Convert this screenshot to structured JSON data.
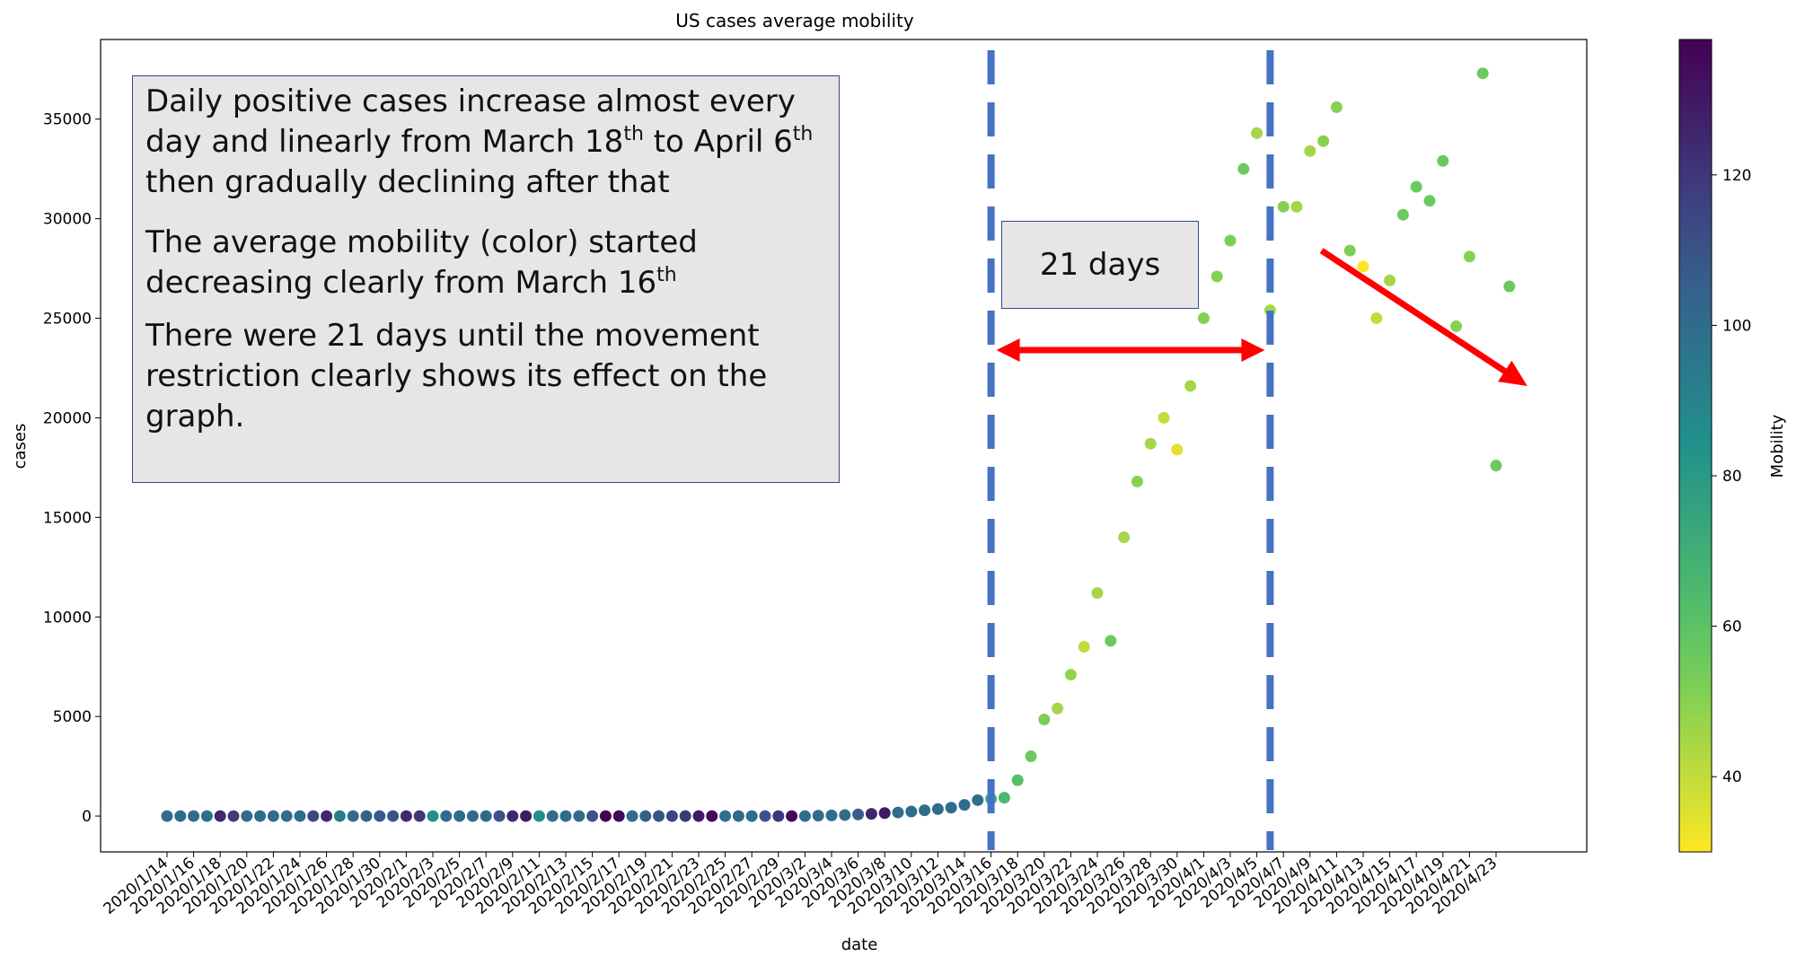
{
  "chart_data": {
    "type": "scatter",
    "title": "US cases average mobility",
    "xlabel": "date",
    "ylabel": "cases",
    "ylim": [
      -1800,
      39000
    ],
    "yticks": [
      0,
      5000,
      10000,
      15000,
      20000,
      25000,
      30000,
      35000
    ],
    "colorbar": {
      "label": "Mobility",
      "range": [
        30,
        138
      ],
      "ticks": [
        40,
        60,
        80,
        100,
        120
      ],
      "colormap": "viridis (reversed: yellow = low, purple = high)"
    },
    "x_tick_labels": [
      "2020/1/14",
      "2020/1/16",
      "2020/1/18",
      "2020/1/20",
      "2020/1/22",
      "2020/1/24",
      "2020/1/26",
      "2020/1/28",
      "2020/1/30",
      "2020/2/1",
      "2020/2/3",
      "2020/2/5",
      "2020/2/7",
      "2020/2/9",
      "2020/2/11",
      "2020/2/13",
      "2020/2/15",
      "2020/2/17",
      "2020/2/19",
      "2020/2/21",
      "2020/2/23",
      "2020/2/25",
      "2020/2/27",
      "2020/2/29",
      "2020/3/2",
      "2020/3/4",
      "2020/3/6",
      "2020/3/8",
      "2020/3/10",
      "2020/3/12",
      "2020/3/14",
      "2020/3/16",
      "2020/3/18",
      "2020/3/20",
      "2020/3/22",
      "2020/3/24",
      "2020/3/26",
      "2020/3/28",
      "2020/3/30",
      "2020/4/1",
      "2020/4/3",
      "2020/4/5",
      "2020/4/7",
      "2020/4/9",
      "2020/4/11",
      "2020/4/13",
      "2020/4/15",
      "2020/4/17",
      "2020/4/19",
      "2020/4/21",
      "2020/4/23"
    ],
    "series": [
      {
        "x": [
          "2020/1/14",
          "2020/1/15",
          "2020/1/16",
          "2020/1/17",
          "2020/1/18",
          "2020/1/19",
          "2020/1/20",
          "2020/1/21",
          "2020/1/22",
          "2020/1/23",
          "2020/1/24",
          "2020/1/25",
          "2020/1/26",
          "2020/1/27",
          "2020/1/28",
          "2020/1/29",
          "2020/1/30",
          "2020/1/31",
          "2020/2/1",
          "2020/2/2",
          "2020/2/3",
          "2020/2/4",
          "2020/2/5",
          "2020/2/6",
          "2020/2/7",
          "2020/2/8",
          "2020/2/9",
          "2020/2/10",
          "2020/2/11",
          "2020/2/12",
          "2020/2/13",
          "2020/2/14",
          "2020/2/15",
          "2020/2/16",
          "2020/2/17",
          "2020/2/18",
          "2020/2/19",
          "2020/2/20",
          "2020/2/21",
          "2020/2/22",
          "2020/2/23",
          "2020/2/24",
          "2020/2/25",
          "2020/2/26",
          "2020/2/27",
          "2020/2/28",
          "2020/2/29",
          "2020/3/1",
          "2020/3/2",
          "2020/3/3",
          "2020/3/4",
          "2020/3/5",
          "2020/3/6",
          "2020/3/7",
          "2020/3/8",
          "2020/3/9",
          "2020/3/10",
          "2020/3/11",
          "2020/3/12",
          "2020/3/13",
          "2020/3/14",
          "2020/3/15",
          "2020/3/16",
          "2020/3/17",
          "2020/3/18",
          "2020/3/19",
          "2020/3/20",
          "2020/3/21",
          "2020/3/22",
          "2020/3/23",
          "2020/3/24",
          "2020/3/25",
          "2020/3/26",
          "2020/3/27",
          "2020/3/28",
          "2020/3/29",
          "2020/3/30",
          "2020/3/31",
          "2020/4/1",
          "2020/4/2",
          "2020/4/3",
          "2020/4/4",
          "2020/4/5",
          "2020/4/6",
          "2020/4/7",
          "2020/4/8",
          "2020/4/9",
          "2020/4/10",
          "2020/4/11",
          "2020/4/12",
          "2020/4/13",
          "2020/4/14",
          "2020/4/15",
          "2020/4/16",
          "2020/4/17",
          "2020/4/18",
          "2020/4/19",
          "2020/4/20",
          "2020/4/21",
          "2020/4/22",
          "2020/4/23",
          "2020/4/24"
        ],
        "cases": [
          0,
          0,
          0,
          0,
          0,
          0,
          0,
          0,
          0,
          0,
          0,
          0,
          0,
          0,
          0,
          0,
          0,
          0,
          0,
          0,
          0,
          0,
          0,
          0,
          0,
          0,
          0,
          0,
          0,
          0,
          0,
          0,
          0,
          0,
          0,
          0,
          0,
          0,
          0,
          0,
          0,
          0,
          0,
          0,
          0,
          0,
          0,
          0,
          0,
          20,
          30,
          50,
          80,
          110,
          150,
          180,
          230,
          290,
          350,
          420,
          560,
          800,
          860,
          920,
          1800,
          3000,
          4850,
          5400,
          7100,
          8500,
          11200,
          8800,
          14000,
          16800,
          18700,
          20000,
          18400,
          21600,
          25000,
          27100,
          28900,
          32500,
          34300,
          25400,
          30600,
          30600,
          33400,
          33900,
          35600,
          28400,
          27600,
          25000,
          26900,
          30200,
          31600,
          30900,
          32900,
          24600,
          28100,
          37300,
          17600,
          26600
        ],
        "mobility": [
          100,
          100,
          100,
          100,
          125,
          118,
          100,
          100,
          100,
          100,
          100,
          115,
          125,
          92,
          100,
          105,
          108,
          110,
          125,
          120,
          85,
          100,
          100,
          100,
          102,
          110,
          125,
          130,
          85,
          100,
          100,
          100,
          110,
          138,
          135,
          100,
          105,
          110,
          115,
          120,
          130,
          135,
          100,
          100,
          100,
          110,
          120,
          135,
          100,
          100,
          100,
          100,
          105,
          125,
          130,
          100,
          100,
          100,
          100,
          100,
          100,
          98,
          70,
          65,
          62,
          55,
          52,
          45,
          48,
          40,
          45,
          55,
          45,
          50,
          45,
          40,
          35,
          45,
          50,
          50,
          52,
          55,
          45,
          45,
          50,
          45,
          45,
          50,
          50,
          52,
          30,
          40,
          45,
          55,
          55,
          55,
          55,
          50,
          50,
          55,
          55,
          55,
          55,
          55
        ]
      }
    ],
    "vertical_reference_lines": [
      "2020/3/16",
      "2020/4/6"
    ],
    "annotations": {
      "note_p1_a": "Daily positive cases increase almost every day and linearly from March 18",
      "note_p1_sup1": "th",
      "note_p1_b": " to April 6",
      "note_p1_sup2": "th",
      "note_p1_c": " then gradually declining after that",
      "note_p2_a": "The average mobility (color) started decreasing clearly from March 16",
      "note_p2_sup": "th",
      "note_p3": "There were 21 days until the movement restriction clearly shows its effect on the graph.",
      "span_label": "21 days"
    }
  }
}
